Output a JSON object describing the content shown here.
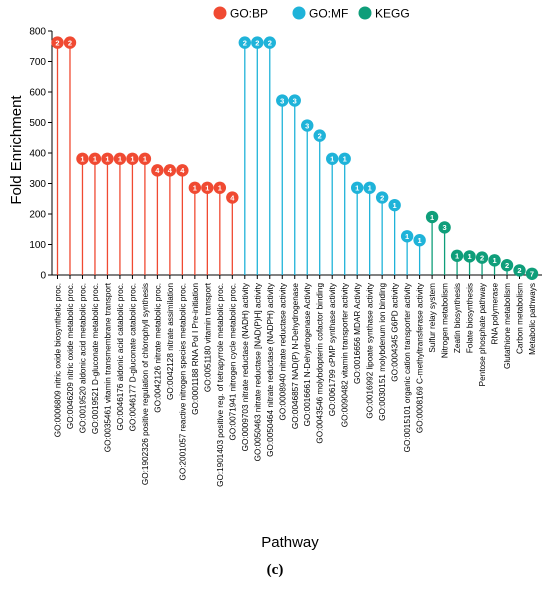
{
  "caption": "(c)",
  "chart_data": {
    "type": "lollipop",
    "title": "",
    "xlabel": "Pathway",
    "ylabel": "Fold Enrichment",
    "ylim": [
      0,
      800
    ],
    "yticks": [
      0,
      100,
      200,
      300,
      400,
      500,
      600,
      700,
      800
    ],
    "grid": false,
    "legend_placement": "top-center",
    "groups": [
      {
        "name": "GO:BP",
        "color": "#f04a32"
      },
      {
        "name": "GO:MF",
        "color": "#1fb3d9"
      },
      {
        "name": "KEGG",
        "color": "#0f9e7a"
      }
    ],
    "points": [
      {
        "label": "GO:0006809 nitric oxide biosynthetic proc.",
        "group": "GO:BP",
        "value": 762,
        "count": 2
      },
      {
        "label": "GO:0046209 nitric oxide metabolic proc.",
        "group": "GO:BP",
        "value": 762,
        "count": 2
      },
      {
        "label": "GO:0019520 aldonic acid metabolic proc.",
        "group": "GO:BP",
        "value": 381,
        "count": 1
      },
      {
        "label": "GO:0019521 D-gluconate metabolic proc.",
        "group": "GO:BP",
        "value": 381,
        "count": 1
      },
      {
        "label": "GO:0035461 vitamin transmembrane transport",
        "group": "GO:BP",
        "value": 381,
        "count": 1
      },
      {
        "label": "GO:0046176 aldonic acid catabolic proc.",
        "group": "GO:BP",
        "value": 381,
        "count": 1
      },
      {
        "label": "GO:0046177 D-gluconate catabolic proc.",
        "group": "GO:BP",
        "value": 381,
        "count": 1
      },
      {
        "label": "GO:1902326 positive regulation of chlorophyll synthesis",
        "group": "GO:BP",
        "value": 381,
        "count": 1
      },
      {
        "label": "GO:0042126 nitrate metabolic proc.",
        "group": "GO:BP",
        "value": 343,
        "count": 4
      },
      {
        "label": "GO:0042128 nitrate assimilation",
        "group": "GO:BP",
        "value": 343,
        "count": 4
      },
      {
        "label": "GO:2001057 reactive nitrogen species metabolic proc.",
        "group": "GO:BP",
        "value": 343,
        "count": 4
      },
      {
        "label": "GO:0001188 RNA Pol I Pre-initiation",
        "group": "GO:BP",
        "value": 286,
        "count": 1
      },
      {
        "label": "GO:0051180 vitamin transport",
        "group": "GO:BP",
        "value": 286,
        "count": 1
      },
      {
        "label": "GO:1901403 positive reg. of tetrapyrrole metabolic proc.",
        "group": "GO:BP",
        "value": 286,
        "count": 1
      },
      {
        "label": "GO:0071941 nitrogen cycle metabolic proc.",
        "group": "GO:BP",
        "value": 254,
        "count": 4
      },
      {
        "label": "GO:0009703 nitrate reductase (NADH) activity",
        "group": "GO:MF",
        "value": 762,
        "count": 2
      },
      {
        "label": "GO:0050463 nitrate reductase [NAD(P)H] activity",
        "group": "GO:MF",
        "value": 762,
        "count": 2
      },
      {
        "label": "GO:0050464 nitrate reductase (NADPH) activity",
        "group": "GO:MF",
        "value": 762,
        "count": 2
      },
      {
        "label": "GO:0008940 nitrate reductase activity",
        "group": "GO:MF",
        "value": 572,
        "count": 3
      },
      {
        "label": "GO:0046857 NAD(P) N-Dehydrogenase",
        "group": "GO:MF",
        "value": 572,
        "count": 3
      },
      {
        "label": "GO:0016661 N-Dehydrogenase Activity",
        "group": "GO:MF",
        "value": 490,
        "count": 3
      },
      {
        "label": "GO:0043546 molybdopterin cofactor binding",
        "group": "GO:MF",
        "value": 457,
        "count": 2
      },
      {
        "label": "GO:0061799 cPMP synthase activity",
        "group": "GO:MF",
        "value": 381,
        "count": 1
      },
      {
        "label": "GO:0090482 vitamin transporter activity",
        "group": "GO:MF",
        "value": 381,
        "count": 1
      },
      {
        "label": "GO:0016656 MDAR Activity",
        "group": "GO:MF",
        "value": 286,
        "count": 1
      },
      {
        "label": "GO:0016992 lipoate synthase activity",
        "group": "GO:MF",
        "value": 286,
        "count": 1
      },
      {
        "label": "GO:0030151 molybdenum ion binding",
        "group": "GO:MF",
        "value": 254,
        "count": 2
      },
      {
        "label": "GO:0004345 G6PD activity",
        "group": "GO:MF",
        "value": 229,
        "count": 1
      },
      {
        "label": "GO:0015101 organic cation transporter activity",
        "group": "GO:MF",
        "value": 127,
        "count": 1
      },
      {
        "label": "GO:0008169 C-methyltransferase activity",
        "group": "GO:MF",
        "value": 114,
        "count": 1
      },
      {
        "label": "Sulfur relay system",
        "group": "KEGG",
        "value": 190,
        "count": 1
      },
      {
        "label": "Nitrogen metabolism",
        "group": "KEGG",
        "value": 156,
        "count": 3
      },
      {
        "label": "Zeatin biosynthesis",
        "group": "KEGG",
        "value": 63,
        "count": 1
      },
      {
        "label": "Folate biosynthesis",
        "group": "KEGG",
        "value": 61,
        "count": 1
      },
      {
        "label": "Pentose phosphate pathway",
        "group": "KEGG",
        "value": 57,
        "count": 2
      },
      {
        "label": "RNA polymerase",
        "group": "KEGG",
        "value": 48,
        "count": 1
      },
      {
        "label": "Glutathione metabolism",
        "group": "KEGG",
        "value": 32,
        "count": 2
      },
      {
        "label": "Carbon metabolism",
        "group": "KEGG",
        "value": 15,
        "count": 2
      },
      {
        "label": "Metabolic pathways",
        "group": "KEGG",
        "value": 4,
        "count": 7
      }
    ]
  }
}
